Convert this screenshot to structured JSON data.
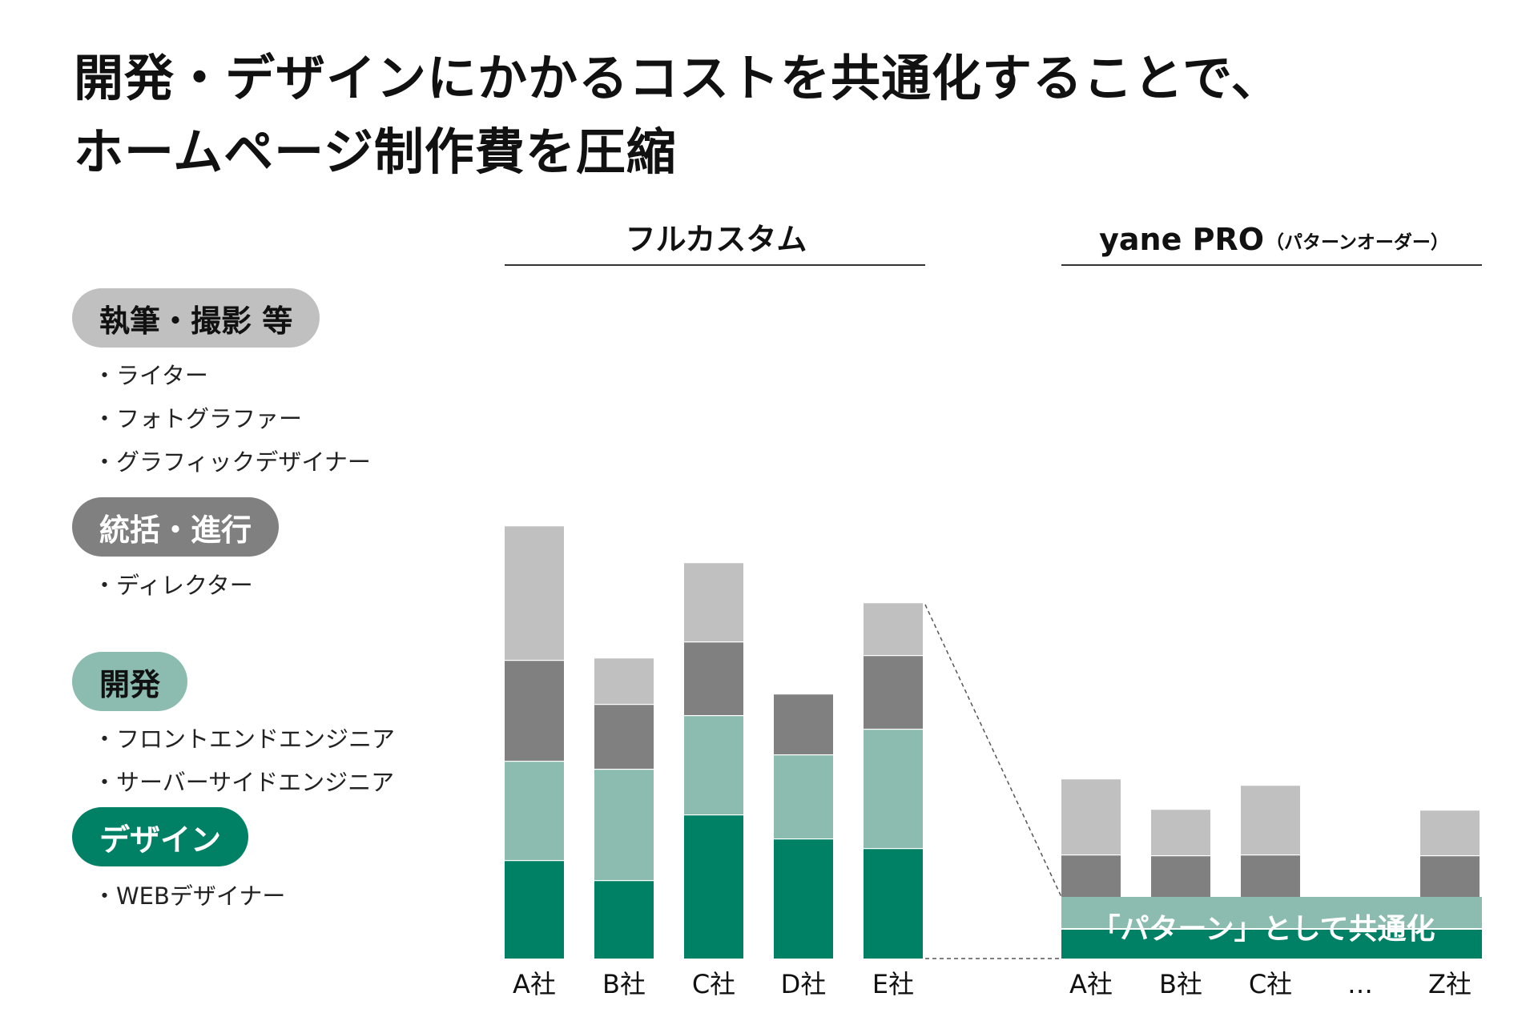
{
  "title": {
    "line1": "開発・デザインにかかるコストを共通化することで、",
    "line2": "ホームページ制作費を圧縮"
  },
  "colors": {
    "writing": "#c0c0c0",
    "direction": "#808080",
    "development": "#8bbcaf",
    "design": "#008065"
  },
  "legend": {
    "groups": [
      {
        "label": "執筆・撮影 等",
        "items": [
          "・ライター",
          "・フォトグラファー",
          "・グラフィックデザイナー"
        ]
      },
      {
        "label": "統括・進行",
        "items": [
          "・ディレクター"
        ]
      },
      {
        "label": "開発",
        "items": [
          "・フロントエンドエンジニア",
          "・サーバーサイドエンジニア"
        ]
      },
      {
        "label": "デザイン",
        "items": [
          "・WEBデザイナー"
        ]
      }
    ]
  },
  "chart_data": [
    {
      "type": "bar",
      "stacked": true,
      "title": "フルカスタム",
      "categories": [
        "A社",
        "B社",
        "C社",
        "D社",
        "E社"
      ],
      "series": [
        {
          "name": "デザイン",
          "values": [
            123,
            98,
            180,
            150,
            138
          ]
        },
        {
          "name": "開発",
          "values": [
            124,
            139,
            124,
            105,
            149
          ]
        },
        {
          "name": "統括・進行",
          "values": [
            126,
            81,
            92,
            76,
            92
          ]
        },
        {
          "name": "執筆・撮影 等",
          "values": [
            168,
            58,
            99,
            0,
            66
          ]
        }
      ]
    },
    {
      "type": "bar",
      "stacked": true,
      "title": "yane PRO",
      "title_suffix": "（パターンオーダー）",
      "categories": [
        "A社",
        "B社",
        "C社",
        "…",
        "Z社"
      ],
      "shared_label": "「パターン」として共通化",
      "shared": {
        "design": 25,
        "development": 27
      },
      "series": [
        {
          "name": "統括・進行",
          "values": [
            53,
            52,
            53,
            null,
            52
          ]
        },
        {
          "name": "執筆・撮影 等",
          "values": [
            95,
            58,
            87,
            null,
            57
          ]
        }
      ]
    }
  ]
}
